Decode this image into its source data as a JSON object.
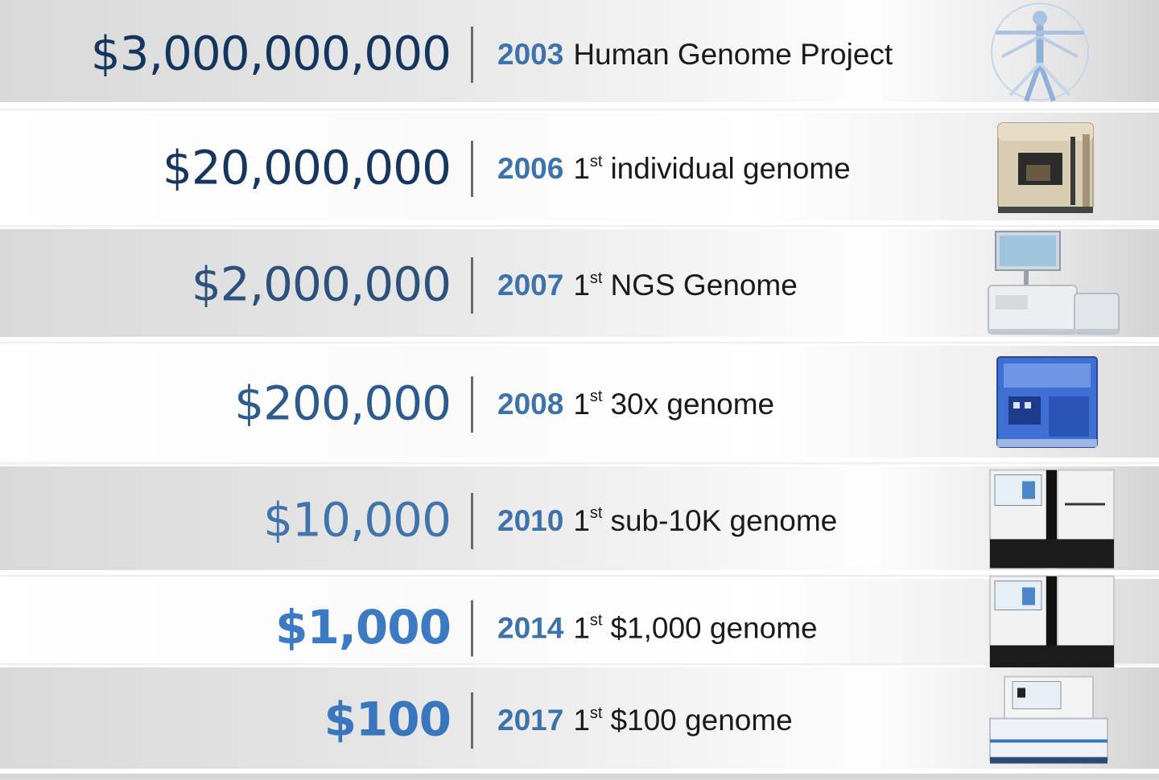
{
  "milestones": [
    {
      "cost": "$3,000,000,000",
      "year": "2003",
      "ordinal": "",
      "ordinal_suffix": "",
      "label": "Human Genome Project",
      "color": "#14355e",
      "image": "vitruvian-man-icon"
    },
    {
      "cost": "$20,000,000",
      "year": "2006",
      "ordinal": "1",
      "ordinal_suffix": "st",
      "label": "individual genome",
      "color": "#17365f",
      "image": "sequencer-instrument-icon"
    },
    {
      "cost": "$2,000,000",
      "year": "2007",
      "ordinal": "1",
      "ordinal_suffix": "st",
      "label": "NGS Genome",
      "color": "#2d517c",
      "image": "ngs-sequencer-icon"
    },
    {
      "cost": "$200,000",
      "year": "2008",
      "ordinal": "1",
      "ordinal_suffix": "st",
      "label": "30x genome",
      "color": "#2e5b8d",
      "image": "blue-sequencer-icon"
    },
    {
      "cost": "$10,000",
      "year": "2010",
      "ordinal": "1",
      "ordinal_suffix": "st",
      "label": "sub-10K genome",
      "color": "#3f74ad",
      "image": "hiseq-sequencer-icon"
    },
    {
      "cost": "$1,000",
      "year": "2014",
      "ordinal": "1",
      "ordinal_suffix": "st",
      "label": "$1,000 genome",
      "color": "#3c7bc4",
      "image": "hiseq-x-sequencer-icon"
    },
    {
      "cost": "$100",
      "year": "2017",
      "ordinal": "1",
      "ordinal_suffix": "st",
      "label": "$100 genome",
      "color": "#3a76bd",
      "image": "novaseq-sequencer-icon"
    }
  ]
}
